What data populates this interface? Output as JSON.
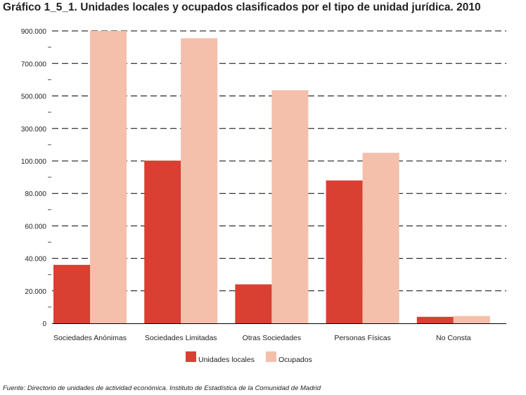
{
  "chart_data": {
    "type": "bar",
    "title": "Gráfico 1_5_1. Unidades locales y ocupados clasificados por el tipo de unidad jurídica. 2010",
    "categories": [
      "Sociedades Anónimas",
      "Sociedades Limitadas",
      "Otras Sociedades",
      "Personas Físicas",
      "No Consta"
    ],
    "series": [
      {
        "name": "Unidades locales",
        "color": "#d94032",
        "values": [
          36000,
          102000,
          24000,
          88000,
          4000
        ]
      },
      {
        "name": "Ocupados",
        "color": "#f4bfab",
        "values": [
          900000,
          855000,
          535000,
          150000,
          4500
        ]
      }
    ],
    "axis_break": {
      "lower_max": 100000,
      "upper_start": 100000,
      "upper_max": 900000
    },
    "y_ticks": [
      {
        "value": 0,
        "label": "0"
      },
      {
        "value": 20000,
        "label": "20.000"
      },
      {
        "value": 40000,
        "label": "40.000"
      },
      {
        "value": 60000,
        "label": "60.000"
      },
      {
        "value": 80000,
        "label": "80.000"
      },
      {
        "value": 100000,
        "label": "100.000"
      },
      {
        "value": 300000,
        "label": "300.000"
      },
      {
        "value": 500000,
        "label": "500.000"
      },
      {
        "value": 700000,
        "label": "700.000"
      },
      {
        "value": 900000,
        "label": "900.000"
      }
    ],
    "grid": true,
    "legend_position": "bottom"
  },
  "source": "Fuente: Directorio de unidades de actividad económica. Instituto de Estadística de la Comunidad de Madrid"
}
